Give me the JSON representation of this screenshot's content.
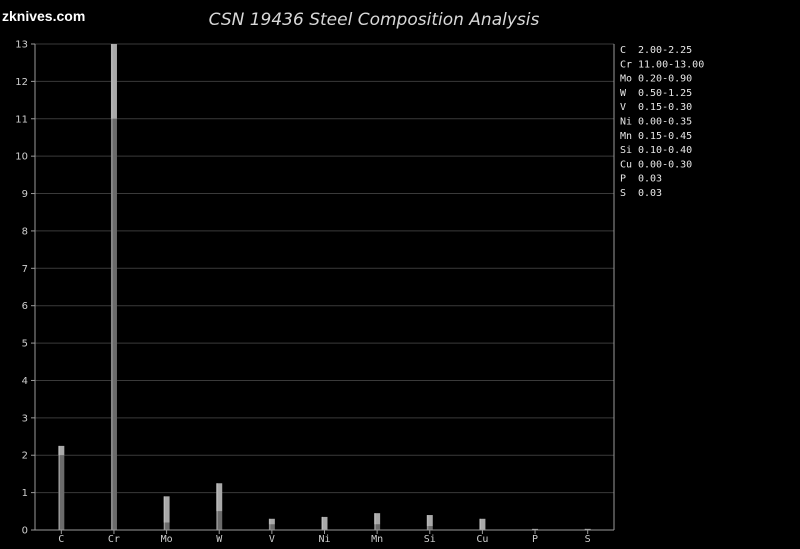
{
  "logo": "zknives.com",
  "chart_data": {
    "type": "bar",
    "title": "CSN 19436 Steel Composition Analysis",
    "xlabel": "",
    "ylabel": "",
    "ylim": [
      0,
      13
    ],
    "yticks": [
      0,
      1,
      2,
      3,
      4,
      5,
      6,
      7,
      8,
      9,
      10,
      11,
      12,
      13
    ],
    "grid": true,
    "legend_position": "right",
    "categories": [
      "C",
      "Cr",
      "Mo",
      "W",
      "V",
      "Ni",
      "Mn",
      "Si",
      "Cu",
      "P",
      "S"
    ],
    "series": [
      {
        "name": "min",
        "values": [
          2.0,
          11.0,
          0.2,
          0.5,
          0.15,
          0.0,
          0.15,
          0.1,
          0.0,
          0.0,
          0.0
        ]
      },
      {
        "name": "max",
        "values": [
          2.25,
          13.0,
          0.9,
          1.25,
          0.3,
          0.35,
          0.45,
          0.4,
          0.3,
          0.03,
          0.03
        ]
      }
    ],
    "legend": [
      {
        "el": "C",
        "range": "2.00-2.25"
      },
      {
        "el": "Cr",
        "range": "11.00-13.00"
      },
      {
        "el": "Mo",
        "range": "0.20-0.90"
      },
      {
        "el": "W",
        "range": "0.50-1.25"
      },
      {
        "el": "V",
        "range": "0.15-0.30"
      },
      {
        "el": "Ni",
        "range": "0.00-0.35"
      },
      {
        "el": "Mn",
        "range": "0.15-0.45"
      },
      {
        "el": "Si",
        "range": "0.10-0.40"
      },
      {
        "el": "Cu",
        "range": "0.00-0.30"
      },
      {
        "el": "P",
        "range": "0.03"
      },
      {
        "el": "S",
        "range": "0.03"
      }
    ]
  }
}
